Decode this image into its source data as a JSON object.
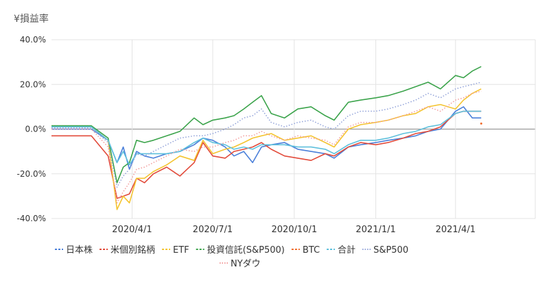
{
  "chart_data": {
    "type": "line",
    "ylabel": "¥損益率",
    "ylim": [
      -40,
      40
    ],
    "y_ticks": [
      "40.0%",
      "20.0%",
      "0.0%",
      "-20.0%",
      "-40.0%"
    ],
    "y_tick_values": [
      40,
      20,
      0,
      -20,
      -40
    ],
    "x_range": [
      "2020-01-01",
      "2021-06-30"
    ],
    "x_ticks": [
      "2020/4/1",
      "2020/7/1",
      "2020/10/1",
      "2021/1/1",
      "2021/4/1"
    ],
    "x_tick_dates": [
      "2020-04-01",
      "2020-07-01",
      "2020-10-01",
      "2021-01-01",
      "2021-04-01"
    ],
    "grid": true,
    "legend_position": "bottom",
    "series": [
      {
        "name": "日本株",
        "color": "#4a7fd9",
        "style": "solid",
        "x": [
          "2020-01-01",
          "2020-01-20",
          "2020-02-15",
          "2020-03-05",
          "2020-03-15",
          "2020-03-22",
          "2020-03-29",
          "2020-04-06",
          "2020-04-15",
          "2020-04-25",
          "2020-05-10",
          "2020-05-25",
          "2020-06-10",
          "2020-06-20",
          "2020-07-01",
          "2020-07-15",
          "2020-07-25",
          "2020-08-05",
          "2020-08-15",
          "2020-08-25",
          "2020-09-05",
          "2020-09-20",
          "2020-10-05",
          "2020-10-20",
          "2020-11-05",
          "2020-11-15",
          "2020-12-01",
          "2020-12-15",
          "2021-01-01",
          "2021-01-15",
          "2021-02-01",
          "2021-02-15",
          "2021-03-01",
          "2021-03-15",
          "2021-04-01",
          "2021-04-10",
          "2021-04-20",
          "2021-04-30"
        ],
        "values": [
          0,
          0,
          0,
          -5,
          -15,
          -8,
          -18,
          -10,
          -12,
          -13,
          -11,
          -10,
          -7,
          -4,
          -5,
          -8,
          -12,
          -10,
          -15,
          -8,
          -7,
          -6,
          -9,
          -10,
          -11,
          -13,
          -8,
          -7,
          -6,
          -5,
          -4,
          -3,
          -1,
          0,
          8,
          10,
          5,
          5
        ]
      },
      {
        "name": "米個別銘柄",
        "color": "#e24a3a",
        "style": "solid",
        "x": [
          "2020-01-01",
          "2020-01-20",
          "2020-02-15",
          "2020-03-05",
          "2020-03-15",
          "2020-03-22",
          "2020-03-29",
          "2020-04-06",
          "2020-04-15",
          "2020-04-25",
          "2020-05-10",
          "2020-05-25",
          "2020-06-10",
          "2020-06-20",
          "2020-07-01",
          "2020-07-15",
          "2020-07-25",
          "2020-08-05",
          "2020-08-15",
          "2020-08-25",
          "2020-09-05",
          "2020-09-20",
          "2020-10-05",
          "2020-10-20",
          "2020-11-05",
          "2020-11-15",
          "2020-12-01",
          "2020-12-15",
          "2021-01-01",
          "2021-01-15",
          "2021-02-01",
          "2021-02-15",
          "2021-03-01",
          "2021-03-15",
          "2021-04-01",
          "2021-04-10",
          "2021-04-20",
          "2021-04-30"
        ],
        "values": [
          -3,
          -3,
          -3,
          -12,
          -31,
          -30,
          -29,
          -22,
          -24,
          -20,
          -17,
          -21,
          -15,
          -6,
          -12,
          -13,
          -10,
          -9,
          -8,
          -6,
          -9,
          -12,
          -13,
          -14,
          -11,
          -12,
          -8,
          -6,
          -7,
          -6,
          -4,
          -2,
          -1,
          1,
          7,
          8,
          8,
          8
        ]
      },
      {
        "name": "ETF",
        "color": "#f4c430",
        "style": "solid",
        "x": [
          "2020-01-01",
          "2020-01-20",
          "2020-02-15",
          "2020-03-05",
          "2020-03-15",
          "2020-03-22",
          "2020-03-29",
          "2020-04-06",
          "2020-04-15",
          "2020-04-25",
          "2020-05-10",
          "2020-05-25",
          "2020-06-10",
          "2020-06-20",
          "2020-07-01",
          "2020-07-15",
          "2020-07-25",
          "2020-08-05",
          "2020-08-15",
          "2020-08-25",
          "2020-09-05",
          "2020-09-20",
          "2020-10-05",
          "2020-10-20",
          "2020-11-05",
          "2020-11-15",
          "2020-12-01",
          "2020-12-15",
          "2021-01-01",
          "2021-01-15",
          "2021-02-01",
          "2021-02-15",
          "2021-03-01",
          "2021-03-15",
          "2021-04-01",
          "2021-04-10",
          "2021-04-20",
          "2021-04-30"
        ],
        "values": [
          1,
          1,
          1,
          -5,
          -36,
          -30,
          -33,
          -22,
          -22,
          -19,
          -16,
          -12,
          -14,
          -5,
          -11,
          -9,
          -8,
          -6,
          -4,
          -3,
          -2,
          -5,
          -4,
          -3,
          -6,
          -8,
          0,
          2,
          3,
          4,
          6,
          7,
          10,
          11,
          9,
          13,
          16,
          18
        ]
      },
      {
        "name": "投資信託(S&P500)",
        "color": "#3aa34a",
        "style": "solid",
        "x": [
          "2020-01-01",
          "2020-01-20",
          "2020-02-15",
          "2020-03-05",
          "2020-03-15",
          "2020-03-22",
          "2020-03-29",
          "2020-04-06",
          "2020-04-15",
          "2020-04-25",
          "2020-05-10",
          "2020-05-25",
          "2020-06-10",
          "2020-06-20",
          "2020-07-01",
          "2020-07-15",
          "2020-07-25",
          "2020-08-05",
          "2020-08-15",
          "2020-08-25",
          "2020-09-05",
          "2020-09-20",
          "2020-10-05",
          "2020-10-20",
          "2020-11-05",
          "2020-11-15",
          "2020-12-01",
          "2020-12-15",
          "2021-01-01",
          "2021-01-15",
          "2021-02-01",
          "2021-02-15",
          "2021-03-01",
          "2021-03-15",
          "2021-04-01",
          "2021-04-10",
          "2021-04-20",
          "2021-04-30"
        ],
        "values": [
          1.5,
          1.5,
          1.5,
          -4,
          -24,
          -17,
          -15,
          -5,
          -6,
          -5,
          -3,
          -1,
          5,
          2,
          4,
          5,
          6,
          9,
          12,
          15,
          7,
          5,
          9,
          10,
          6,
          4,
          12,
          13,
          14,
          15,
          17,
          19,
          21,
          18,
          24,
          23,
          26,
          28
        ]
      },
      {
        "name": "BTC",
        "color": "#f06a2a",
        "style": "solid",
        "x": [
          "2021-04-30"
        ],
        "values": [
          2.5
        ]
      },
      {
        "name": "合計",
        "color": "#5ec0dc",
        "style": "solid",
        "x": [
          "2020-01-01",
          "2020-01-20",
          "2020-02-15",
          "2020-03-05",
          "2020-03-15",
          "2020-03-22",
          "2020-03-29",
          "2020-04-06",
          "2020-04-15",
          "2020-04-25",
          "2020-05-10",
          "2020-05-25",
          "2020-06-10",
          "2020-06-20",
          "2020-07-01",
          "2020-07-15",
          "2020-07-25",
          "2020-08-05",
          "2020-08-15",
          "2020-08-25",
          "2020-09-05",
          "2020-09-20",
          "2020-10-05",
          "2020-10-20",
          "2020-11-05",
          "2020-11-15",
          "2020-12-01",
          "2020-12-15",
          "2021-01-01",
          "2021-01-15",
          "2021-02-01",
          "2021-02-15",
          "2021-03-01",
          "2021-03-15",
          "2021-04-01",
          "2021-04-10",
          "2021-04-20",
          "2021-04-30"
        ],
        "values": [
          1,
          1,
          1,
          -5,
          -15,
          -10,
          -16,
          -11,
          -11,
          -11,
          -11,
          -10,
          -6,
          -4,
          -6,
          -7,
          -9,
          -8,
          -9,
          -7,
          -7,
          -7,
          -8,
          -8,
          -9,
          -11,
          -7,
          -5,
          -5,
          -4,
          -2,
          -1,
          1,
          2,
          7,
          8,
          8,
          8
        ]
      },
      {
        "name": "S&P500",
        "color": "#8fa0d8",
        "style": "dotted",
        "x": [
          "2020-01-01",
          "2020-01-20",
          "2020-02-15",
          "2020-03-05",
          "2020-03-15",
          "2020-03-22",
          "2020-03-29",
          "2020-04-06",
          "2020-04-15",
          "2020-04-25",
          "2020-05-10",
          "2020-05-25",
          "2020-06-10",
          "2020-06-20",
          "2020-07-01",
          "2020-07-15",
          "2020-07-25",
          "2020-08-05",
          "2020-08-15",
          "2020-08-25",
          "2020-09-05",
          "2020-09-20",
          "2020-10-05",
          "2020-10-20",
          "2020-11-05",
          "2020-11-15",
          "2020-12-01",
          "2020-12-15",
          "2021-01-01",
          "2021-01-15",
          "2021-02-01",
          "2021-02-15",
          "2021-03-01",
          "2021-03-15",
          "2021-04-01",
          "2021-04-10",
          "2021-04-20",
          "2021-04-30"
        ],
        "values": [
          0.5,
          0.5,
          0.5,
          -6,
          -26,
          -21,
          -18,
          -11,
          -12,
          -10,
          -7,
          -4,
          -3,
          -3,
          -2,
          0,
          2,
          5,
          6,
          9,
          3,
          1,
          3,
          4,
          1,
          0,
          6,
          8,
          8,
          9,
          11,
          13,
          16,
          14,
          18,
          19,
          20,
          21
        ]
      },
      {
        "name": "NYダウ",
        "color": "#f29a9a",
        "style": "dotted",
        "x": [
          "2020-01-01",
          "2020-01-20",
          "2020-02-15",
          "2020-03-05",
          "2020-03-15",
          "2020-03-22",
          "2020-03-29",
          "2020-04-06",
          "2020-04-15",
          "2020-04-25",
          "2020-05-10",
          "2020-05-25",
          "2020-06-10",
          "2020-06-20",
          "2020-07-01",
          "2020-07-15",
          "2020-07-25",
          "2020-08-05",
          "2020-08-15",
          "2020-08-25",
          "2020-09-05",
          "2020-09-20",
          "2020-10-05",
          "2020-10-20",
          "2020-11-05",
          "2020-11-15",
          "2020-12-01",
          "2020-12-15",
          "2021-01-01",
          "2021-01-15",
          "2021-02-01",
          "2021-02-15",
          "2021-03-01",
          "2021-03-15",
          "2021-04-01",
          "2021-04-10",
          "2021-04-20",
          "2021-04-30"
        ],
        "values": [
          0,
          0,
          0,
          -8,
          -33,
          -28,
          -24,
          -18,
          -17,
          -15,
          -12,
          -9,
          -10,
          -8,
          -8,
          -6,
          -5,
          -3,
          -3,
          -1,
          -3,
          -5,
          -3,
          -4,
          -5,
          -7,
          1,
          3,
          3,
          4,
          6,
          8,
          10,
          8,
          13,
          14,
          16,
          17
        ]
      }
    ]
  }
}
